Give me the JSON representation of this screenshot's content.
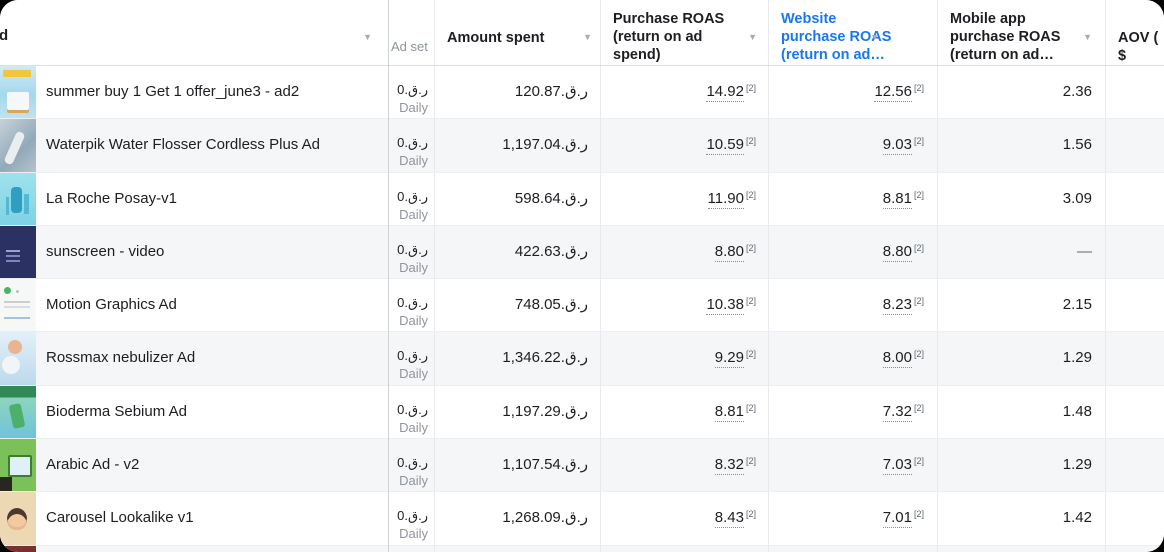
{
  "colors": {
    "accent_blue": "#1877f2",
    "header_text": "#1c1e21",
    "muted_text": "#90949c",
    "row_alt_bg": "#f5f6f7"
  },
  "header": {
    "pinned_fragment": "d",
    "adset_label": "Ad set",
    "amount_label": "Amount spent",
    "purchase_roas_label": "Purchase ROAS\n(return on ad\nspend)",
    "website_roas_label": "Website\npurchase ROAS\n(return on ad…",
    "mobile_roas_label": "Mobile app\npurchase ROAS\n(return on ad…",
    "aov_label": "AOV ( $",
    "sort_arrow": "▼"
  },
  "adset": {
    "budget_visible": "0",
    "schedule": "Daily"
  },
  "currency": "ر.ق.",
  "footnote_marker": "[2]",
  "rows": [
    {
      "name": "summer buy 1 Get 1 offer_june3 - ad2",
      "thumb_desc": "buy-1-get-1-promo-creative",
      "amount": "120.87",
      "purchase_roas": "14.92",
      "website_roas": "12.56",
      "mobile_roas": "2.36"
    },
    {
      "name": "Waterpik Water Flosser Cordless Plus Ad",
      "thumb_desc": "water-flosser-photo-creative",
      "amount": "1,197.04",
      "purchase_roas": "10.59",
      "website_roas": "9.03",
      "mobile_roas": "1.56"
    },
    {
      "name": "La Roche Posay-v1",
      "thumb_desc": "skincare-bottle-creative",
      "amount": "598.64",
      "purchase_roas": "11.90",
      "website_roas": "8.81",
      "mobile_roas": "3.09"
    },
    {
      "name": "sunscreen - video",
      "thumb_desc": "dark-video-creative",
      "amount": "422.63",
      "purchase_roas": "8.80",
      "website_roas": "8.80",
      "mobile_roas": "—"
    },
    {
      "name": "Motion Graphics Ad",
      "thumb_desc": "motion-graphics-creative",
      "amount": "748.05",
      "purchase_roas": "10.38",
      "website_roas": "8.23",
      "mobile_roas": "2.15"
    },
    {
      "name": "Rossmax nebulizer Ad",
      "thumb_desc": "nebulizer-photo-creative",
      "amount": "1,346.22",
      "purchase_roas": "9.29",
      "website_roas": "8.00",
      "mobile_roas": "1.29"
    },
    {
      "name": "Bioderma Sebium Ad",
      "thumb_desc": "bioderma-product-creative",
      "amount": "1,197.29",
      "purchase_roas": "8.81",
      "website_roas": "7.32",
      "mobile_roas": "1.48"
    },
    {
      "name": "Arabic Ad - v2",
      "thumb_desc": "arabic-green-creative",
      "amount": "1,107.54",
      "purchase_roas": "8.32",
      "website_roas": "7.03",
      "mobile_roas": "1.29"
    },
    {
      "name": "Carousel Lookalike v1",
      "thumb_desc": "carousel-face-creative",
      "amount": "1,268.09",
      "purchase_roas": "8.43",
      "website_roas": "7.01",
      "mobile_roas": "1.42"
    }
  ],
  "partial_row": {
    "visible": true
  }
}
